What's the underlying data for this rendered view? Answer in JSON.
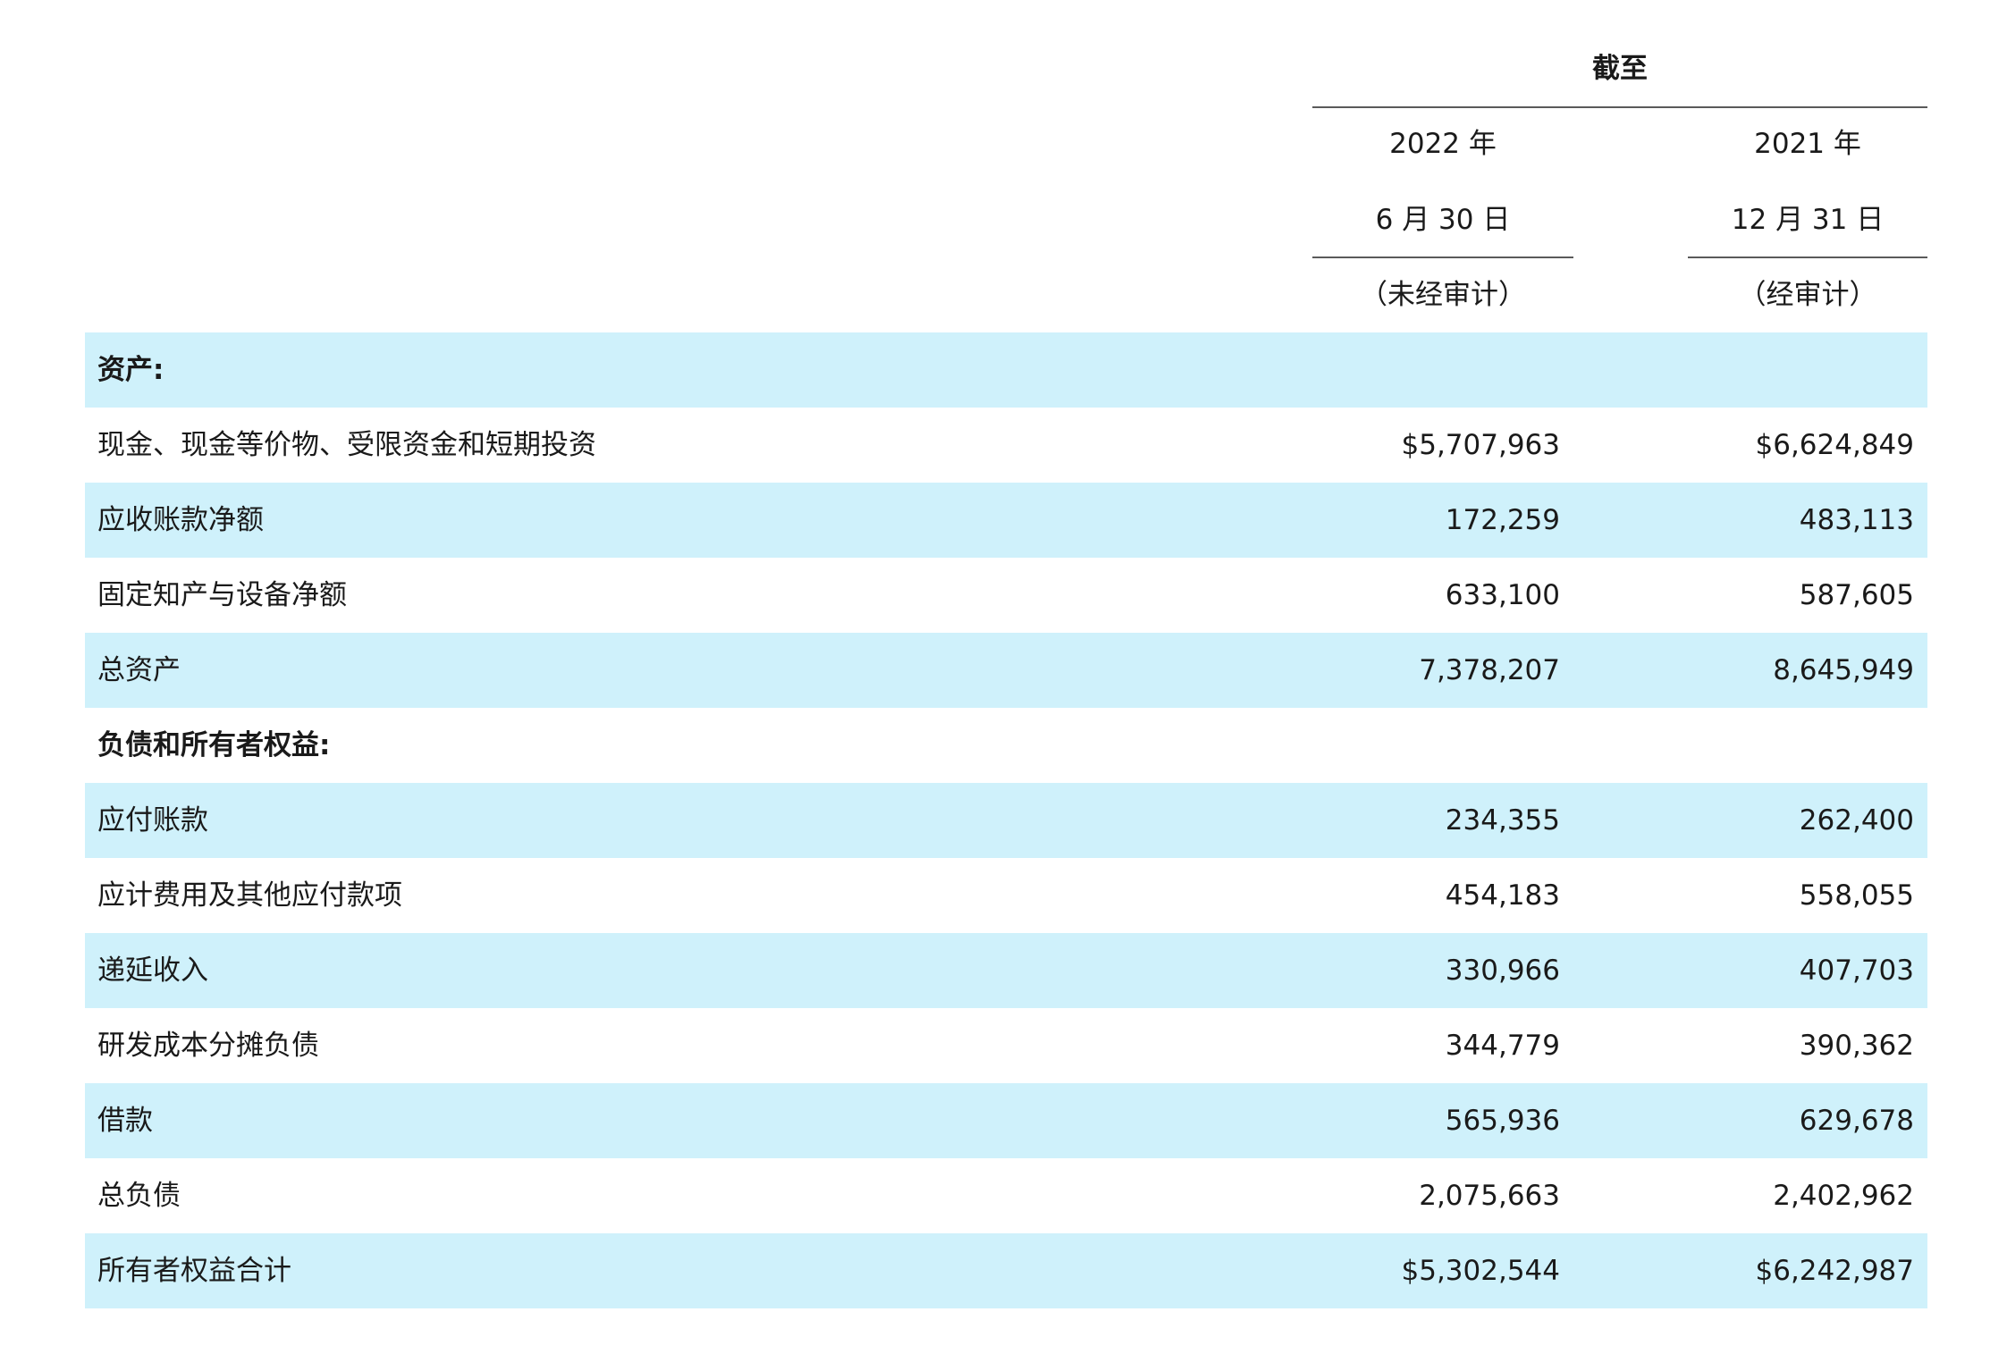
{
  "header": {
    "period_label": "截至",
    "col1": {
      "year": "2022 年",
      "date": "6 月 30 日",
      "audit": "（未经审计）"
    },
    "col2": {
      "year": "2021 年",
      "date": "12 月 31 日",
      "audit": "（经审计）"
    }
  },
  "colors": {
    "shaded_row": "#cff1fb",
    "rule": "#5a5a5a"
  },
  "rows": [
    {
      "label": "资产:",
      "section": true,
      "v1": "",
      "v2": ""
    },
    {
      "label": "现金、现金等价物、受限资金和短期投资",
      "section": false,
      "v1": "$5,707,963",
      "v2": "$6,624,849"
    },
    {
      "label": "应收账款净额",
      "section": false,
      "v1": "172,259",
      "v2": "483,113"
    },
    {
      "label": "固定知产与设备净额",
      "section": false,
      "v1": "633,100",
      "v2": "587,605"
    },
    {
      "label": "总资产",
      "section": false,
      "v1": "7,378,207",
      "v2": "8,645,949"
    },
    {
      "label": "负债和所有者权益:",
      "section": true,
      "v1": "",
      "v2": ""
    },
    {
      "label": "应付账款",
      "section": false,
      "v1": "234,355",
      "v2": "262,400"
    },
    {
      "label": "应计费用及其他应付款项",
      "section": false,
      "v1": "454,183",
      "v2": "558,055"
    },
    {
      "label": "递延收入",
      "section": false,
      "v1": "330,966",
      "v2": "407,703"
    },
    {
      "label": "研发成本分摊负债",
      "section": false,
      "v1": "344,779",
      "v2": "390,362"
    },
    {
      "label": "借款",
      "section": false,
      "v1": "565,936",
      "v2": "629,678"
    },
    {
      "label": "总负债",
      "section": false,
      "v1": "2,075,663",
      "v2": "2,402,962"
    },
    {
      "label": "所有者权益合计",
      "section": false,
      "v1": "$5,302,544",
      "v2": "$6,242,987"
    }
  ]
}
